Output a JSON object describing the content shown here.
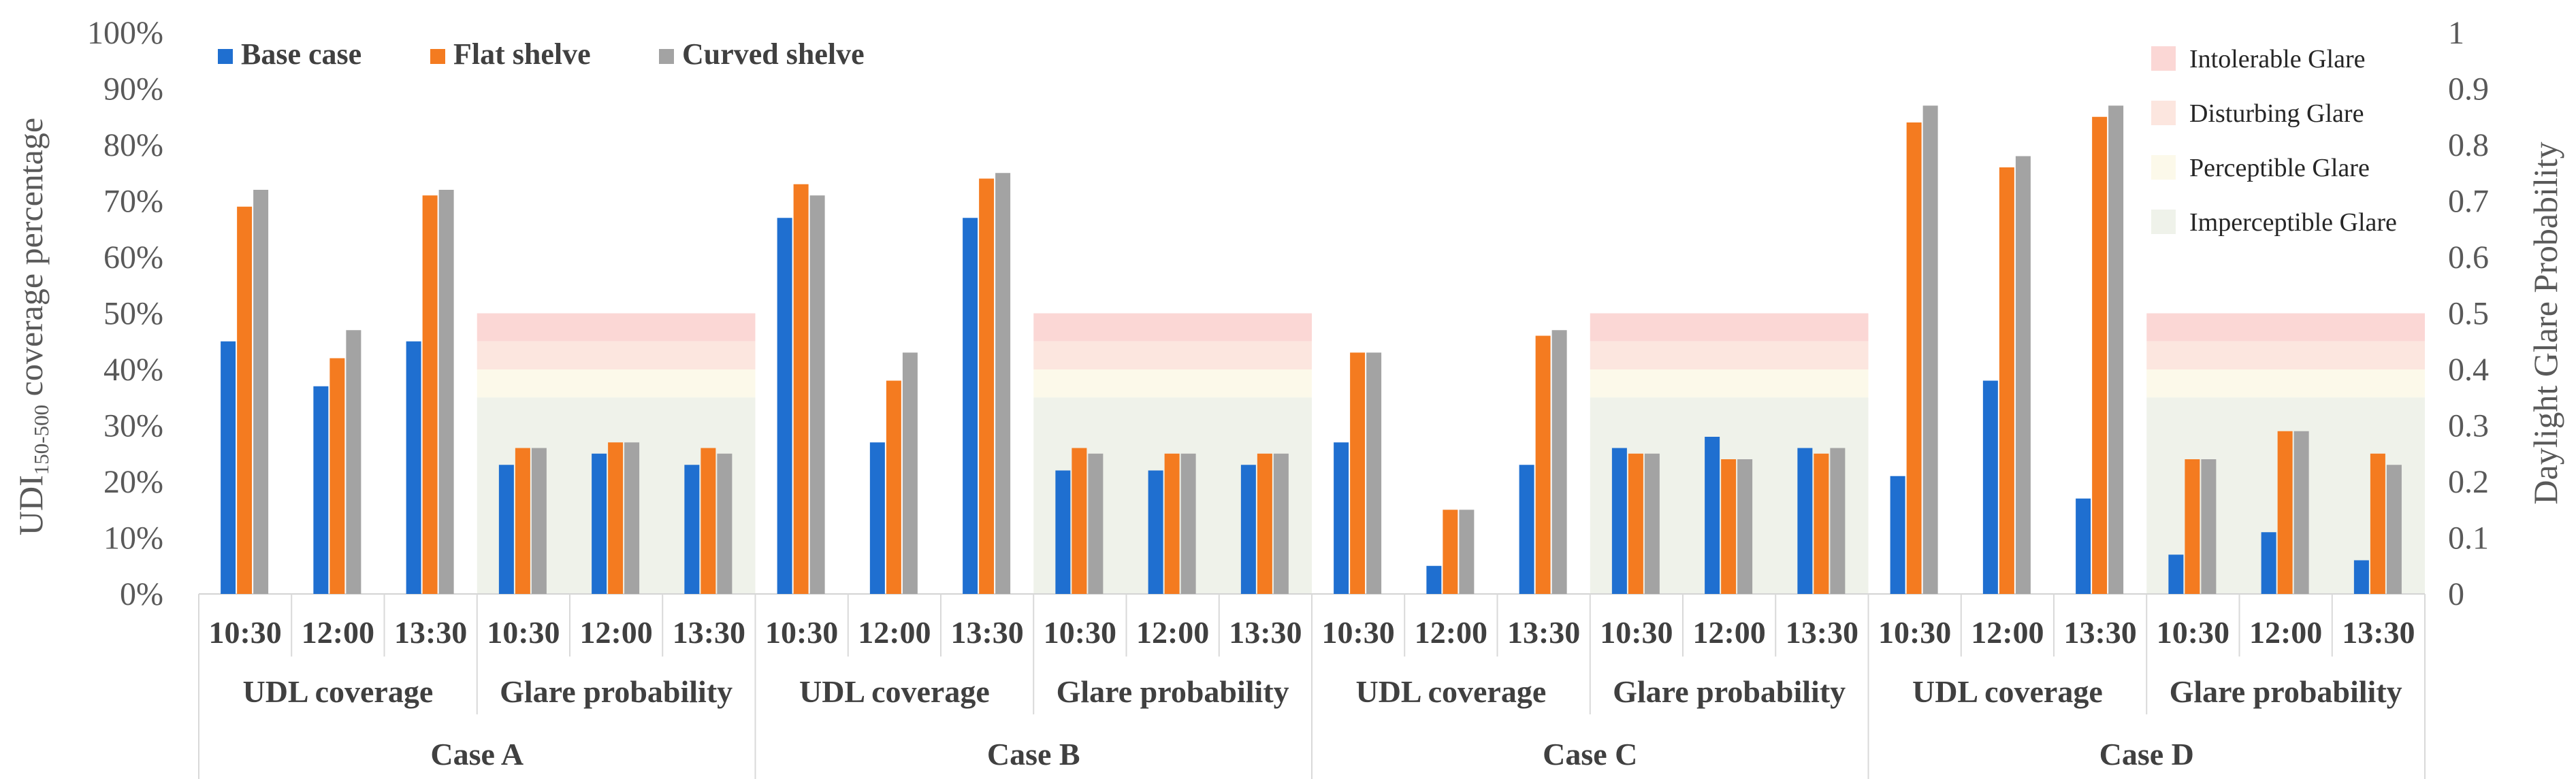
{
  "chart_data": {
    "type": "bar",
    "left_axis": {
      "label_main": "UDI",
      "label_sub": "150-500",
      "label_rest": " coverage percentage",
      "ylim": [
        0,
        100
      ],
      "ticks": [
        "0%",
        "10%",
        "20%",
        "30%",
        "40%",
        "50%",
        "60%",
        "70%",
        "80%",
        "90%",
        "100%"
      ]
    },
    "right_axis": {
      "label": "Daylight Glare Probability",
      "ylim": [
        0,
        1
      ],
      "ticks": [
        "0",
        "0.1",
        "0.2",
        "0.3",
        "0.4",
        "0.5",
        "0.6",
        "0.7",
        "0.8",
        "0.9",
        "1"
      ]
    },
    "series": [
      {
        "name": "Base case",
        "color": "#1f6fd0"
      },
      {
        "name": "Flat shelve",
        "color": "#f47b20"
      },
      {
        "name": "Curved shelve",
        "color": "#a3a3a3"
      }
    ],
    "glare_zones": [
      {
        "name": "Intolerable Glare",
        "from": 0.45,
        "to": 0.5,
        "color": "#fbd7d5"
      },
      {
        "name": "Disturbing Glare",
        "from": 0.4,
        "to": 0.45,
        "color": "#fce6df"
      },
      {
        "name": "Perceptible Glare",
        "from": 0.35,
        "to": 0.4,
        "color": "#fcf9ea"
      },
      {
        "name": "Imperceptible Glare",
        "from": 0,
        "to": 0.35,
        "color": "#eff2ea"
      }
    ],
    "cases": [
      {
        "name": "Case A",
        "groups": [
          {
            "name": "UDL  coverage",
            "kind": "udl",
            "times": [
              {
                "label": "10:30",
                "values": [
                  45,
                  69,
                  72
                ]
              },
              {
                "label": "12:00",
                "values": [
                  37,
                  42,
                  47
                ]
              },
              {
                "label": "13:30",
                "values": [
                  45,
                  71,
                  72
                ]
              }
            ]
          },
          {
            "name": "Glare probability",
            "kind": "glare",
            "times": [
              {
                "label": "10:30",
                "values": [
                  0.23,
                  0.26,
                  0.26
                ]
              },
              {
                "label": "12:00",
                "values": [
                  0.25,
                  0.27,
                  0.27
                ]
              },
              {
                "label": "13:30",
                "values": [
                  0.23,
                  0.26,
                  0.25
                ]
              }
            ]
          }
        ]
      },
      {
        "name": "Case B",
        "groups": [
          {
            "name": "UDL  coverage",
            "kind": "udl",
            "times": [
              {
                "label": "10:30",
                "values": [
                  67,
                  73,
                  71
                ]
              },
              {
                "label": "12:00",
                "values": [
                  27,
                  38,
                  43
                ]
              },
              {
                "label": "13:30",
                "values": [
                  67,
                  74,
                  75
                ]
              }
            ]
          },
          {
            "name": "Glare probability",
            "kind": "glare",
            "times": [
              {
                "label": "10:30",
                "values": [
                  0.22,
                  0.26,
                  0.25
                ]
              },
              {
                "label": "12:00",
                "values": [
                  0.22,
                  0.25,
                  0.25
                ]
              },
              {
                "label": "13:30",
                "values": [
                  0.23,
                  0.25,
                  0.25
                ]
              }
            ]
          }
        ]
      },
      {
        "name": "Case C",
        "groups": [
          {
            "name": "UDL  coverage",
            "kind": "udl",
            "times": [
              {
                "label": "10:30",
                "values": [
                  27,
                  43,
                  43
                ]
              },
              {
                "label": "12:00",
                "values": [
                  5,
                  15,
                  15
                ]
              },
              {
                "label": "13:30",
                "values": [
                  23,
                  46,
                  47
                ]
              }
            ]
          },
          {
            "name": "Glare probability",
            "kind": "glare",
            "times": [
              {
                "label": "10:30",
                "values": [
                  0.26,
                  0.25,
                  0.25
                ]
              },
              {
                "label": "12:00",
                "values": [
                  0.28,
                  0.24,
                  0.24
                ]
              },
              {
                "label": "13:30",
                "values": [
                  0.26,
                  0.25,
                  0.26
                ]
              }
            ]
          }
        ]
      },
      {
        "name": "Case D",
        "groups": [
          {
            "name": "UDL  coverage",
            "kind": "udl",
            "times": [
              {
                "label": "10:30",
                "values": [
                  21,
                  84,
                  87
                ]
              },
              {
                "label": "12:00",
                "values": [
                  38,
                  76,
                  78
                ]
              },
              {
                "label": "13:30",
                "values": [
                  17,
                  85,
                  87
                ]
              }
            ]
          },
          {
            "name": "Glare probability",
            "kind": "glare",
            "times": [
              {
                "label": "10:30",
                "values": [
                  0.07,
                  0.24,
                  0.24
                ]
              },
              {
                "label": "12:00",
                "values": [
                  0.11,
                  0.29,
                  0.29
                ]
              },
              {
                "label": "13:30",
                "values": [
                  0.06,
                  0.25,
                  0.23
                ]
              }
            ]
          }
        ]
      }
    ]
  }
}
